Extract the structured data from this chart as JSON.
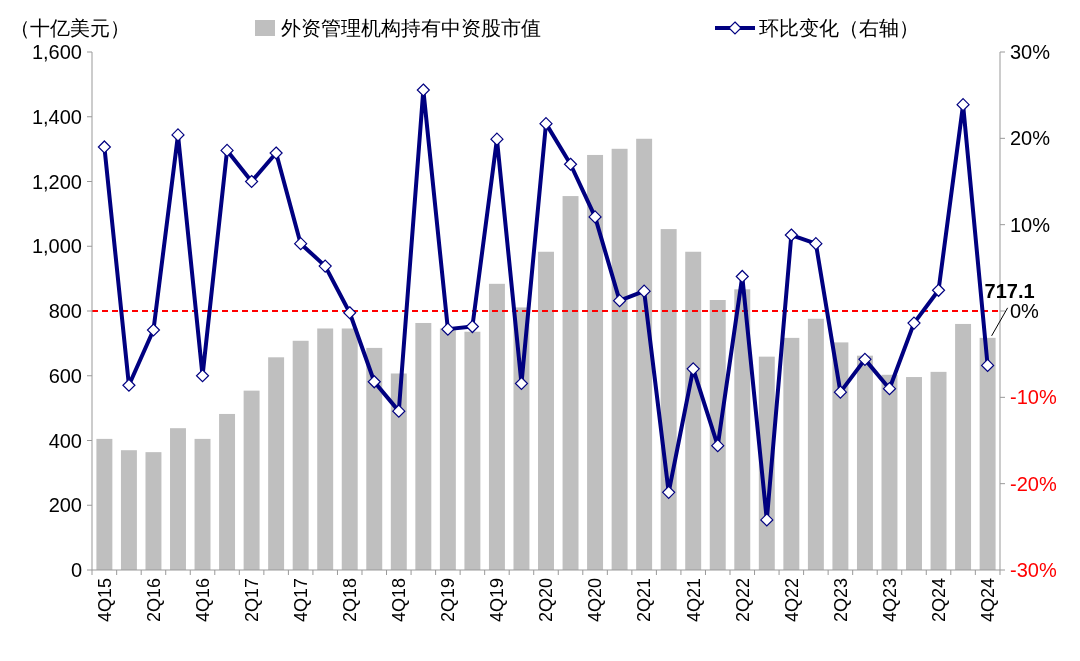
{
  "chart_data": {
    "type": "bar",
    "ylabel": "（十亿美元）",
    "categories": [
      "4Q15",
      null,
      "2Q16",
      null,
      "4Q16",
      null,
      "2Q17",
      null,
      "4Q17",
      null,
      "2Q18",
      null,
      "4Q18",
      null,
      "2Q19",
      null,
      "4Q19",
      null,
      "2Q20",
      null,
      "4Q20",
      null,
      "2Q21",
      null,
      "4Q21",
      null,
      "2Q22",
      null,
      "4Q22",
      null,
      "2Q23",
      null,
      "4Q23",
      null,
      "2Q24",
      null,
      "4Q24"
    ],
    "series": [
      {
        "name": "外资管理机构持有中资股市值",
        "color": "#bfbfbf",
        "values": [
          405,
          370,
          364,
          438,
          405,
          482,
          554,
          657,
          708,
          746,
          746,
          686,
          607,
          763,
          746,
          736,
          884,
          811,
          983,
          1155,
          1282,
          1301,
          1332,
          1053,
          983,
          834,
          867,
          659,
          717,
          776,
          703,
          662,
          603,
          596,
          612,
          760,
          717.1
        ]
      },
      {
        "name": "环比变化（右轴）",
        "type": "line",
        "axis": "y2",
        "color": "#000080",
        "marker": "diamond",
        "line_style": "solid",
        "values": [
          19.0,
          -8.6,
          -2.2,
          20.4,
          -7.5,
          18.6,
          15.0,
          18.3,
          7.8,
          5.2,
          -0.2,
          -8.2,
          -11.6,
          25.6,
          -2.1,
          -1.8,
          19.9,
          -8.4,
          21.7,
          17.0,
          10.9,
          1.2,
          2.3,
          -21.0,
          -6.7,
          -15.6,
          4.0,
          -24.2,
          8.8,
          7.8,
          -9.4,
          -5.6,
          -9.0,
          -1.4,
          2.4,
          23.9,
          -6.3
        ]
      }
    ],
    "ylim": [
      0,
      1600
    ],
    "yticks": [
      0,
      {
        "value": 200,
        "label": "200"
      },
      {
        "value": 400,
        "label": "400"
      },
      {
        "value": 600,
        "label": "600"
      },
      {
        "value": 800,
        "label": "800"
      },
      {
        "value": 1000,
        "label": "1,000"
      },
      {
        "value": 1200,
        "label": "1,200"
      },
      {
        "value": 1400,
        "label": "1,400"
      },
      {
        "value": 1600,
        "label": "1,600"
      }
    ],
    "y2lim": [
      -30,
      30
    ],
    "y2ticks": [
      {
        "value": -30,
        "label": "-30%"
      },
      {
        "value": -20,
        "label": "-20%"
      },
      {
        "value": -10,
        "label": "-10%"
      },
      {
        "value": 0,
        "label": "0%"
      },
      {
        "value": 10,
        "label": "10%"
      },
      {
        "value": 20,
        "label": "20%"
      },
      {
        "value": 30,
        "label": "30%"
      }
    ],
    "ref_lines": [
      {
        "axis": "y2",
        "value": 0,
        "color": "#ff0000",
        "line_style": "dashed"
      }
    ],
    "annotations": [
      {
        "text": "717.1",
        "x": "4Q24",
        "y": 717.1
      }
    ],
    "legend": "top",
    "grid": false
  }
}
